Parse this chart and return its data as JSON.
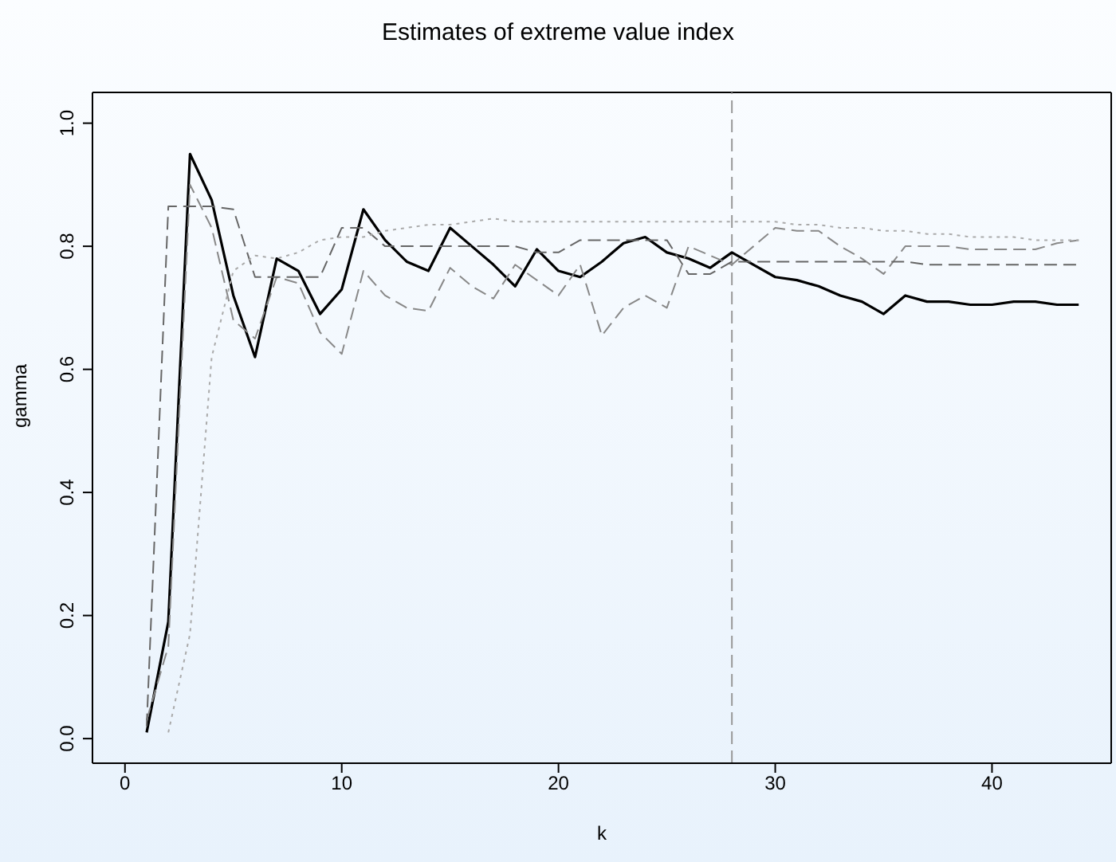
{
  "chart_data": {
    "type": "line",
    "title": "Estimates of extreme value index",
    "xlabel": "k",
    "ylabel": "gamma",
    "x": [
      1,
      2,
      3,
      4,
      5,
      6,
      7,
      8,
      9,
      10,
      11,
      12,
      13,
      14,
      15,
      16,
      17,
      18,
      19,
      20,
      21,
      22,
      23,
      24,
      25,
      26,
      27,
      28,
      29,
      30,
      31,
      32,
      33,
      34,
      35,
      36,
      37,
      38,
      39,
      40,
      41,
      42,
      43,
      44
    ],
    "series": [
      {
        "color": "#000000",
        "line_style": "solid",
        "values": [
          0.01,
          0.19,
          0.95,
          0.875,
          0.72,
          0.62,
          0.78,
          0.76,
          0.69,
          0.73,
          0.86,
          0.81,
          0.775,
          0.76,
          0.83,
          0.8,
          0.77,
          0.735,
          0.795,
          0.76,
          0.75,
          0.775,
          0.805,
          0.815,
          0.79,
          0.78,
          0.765,
          0.79,
          0.77,
          0.75,
          0.745,
          0.735,
          0.72,
          0.71,
          0.69,
          0.72,
          0.71,
          0.71,
          0.705,
          0.705,
          0.71,
          0.71,
          0.705,
          0.705
        ]
      },
      {
        "color": "#888888",
        "line_style": "dashed",
        "values": [
          0.03,
          0.15,
          0.9,
          0.83,
          0.68,
          0.65,
          0.75,
          0.74,
          0.66,
          0.625,
          0.76,
          0.72,
          0.7,
          0.695,
          0.765,
          0.735,
          0.715,
          0.77,
          0.745,
          0.72,
          0.77,
          0.655,
          0.7,
          0.72,
          0.7,
          0.8,
          0.785,
          0.77,
          0.8,
          0.83,
          0.825,
          0.825,
          0.8,
          0.78,
          0.755,
          0.8,
          0.8,
          0.8,
          0.795,
          0.795,
          0.795,
          0.795,
          0.805,
          0.81
        ]
      },
      {
        "color": "#666666",
        "line_style": "dashed",
        "values": [
          0.02,
          0.865,
          0.865,
          0.865,
          0.86,
          0.75,
          0.75,
          0.75,
          0.75,
          0.83,
          0.83,
          0.8,
          0.8,
          0.8,
          0.8,
          0.8,
          0.8,
          0.8,
          0.79,
          0.79,
          0.81,
          0.81,
          0.81,
          0.81,
          0.81,
          0.755,
          0.755,
          0.775,
          0.775,
          0.775,
          0.775,
          0.775,
          0.775,
          0.775,
          0.775,
          0.775,
          0.77,
          0.77,
          0.77,
          0.77,
          0.77,
          0.77,
          0.77,
          0.77
        ]
      },
      {
        "color": "#aaaaaa",
        "line_style": "dotted",
        "values": [
          null,
          0.01,
          0.17,
          0.62,
          0.76,
          0.785,
          0.78,
          0.79,
          0.81,
          0.815,
          0.815,
          0.825,
          0.83,
          0.835,
          0.835,
          0.84,
          0.845,
          0.84,
          0.84,
          0.84,
          0.84,
          0.84,
          0.84,
          0.84,
          0.84,
          0.84,
          0.84,
          0.84,
          0.84,
          0.84,
          0.835,
          0.835,
          0.83,
          0.83,
          0.825,
          0.825,
          0.82,
          0.82,
          0.815,
          0.815,
          0.815,
          0.81,
          0.81,
          0.81
        ]
      }
    ],
    "xlim": [
      -1.5,
      45.5
    ],
    "xticks": [
      0,
      10,
      20,
      30,
      40
    ],
    "ylim": [
      -0.04,
      1.05
    ],
    "yticks": [
      {
        "value": 0,
        "label": "0.0"
      },
      {
        "value": 0.2,
        "label": "0.2"
      },
      {
        "value": 0.4,
        "label": "0.4"
      },
      {
        "value": 0.6,
        "label": "0.6"
      },
      {
        "value": 0.8,
        "label": "0.8"
      },
      {
        "value": 1,
        "label": "1.0"
      }
    ],
    "ref_lines": [
      {
        "axis": "x",
        "value": 28,
        "color": "#999999",
        "line_style": "dashed"
      }
    ],
    "grid": false,
    "legend": false,
    "marker": "none"
  }
}
